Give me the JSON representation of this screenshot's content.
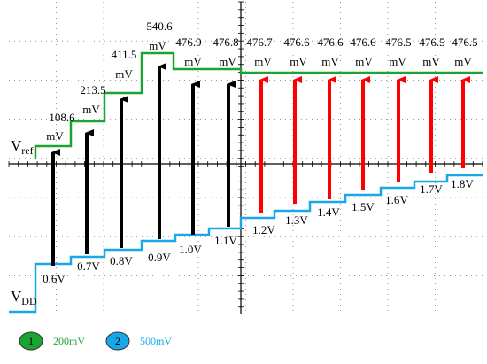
{
  "vref_levels": [
    {
      "value": "108.6",
      "unit": "mV"
    },
    {
      "value": "213.5",
      "unit": "mV"
    },
    {
      "value": "411.5",
      "unit": "mV"
    },
    {
      "value": "540.6",
      "unit": "mV"
    },
    {
      "value": "476.9",
      "unit": "mV"
    },
    {
      "value": "476.8",
      "unit": "mV"
    },
    {
      "value": "476.7",
      "unit": "mV"
    },
    {
      "value": "476.6",
      "unit": "mV"
    },
    {
      "value": "476.6",
      "unit": "mV"
    },
    {
      "value": "476.6",
      "unit": "mV"
    },
    {
      "value": "476.5",
      "unit": "mV"
    },
    {
      "value": "476.5",
      "unit": "mV"
    },
    {
      "value": "476.5",
      "unit": "mV"
    }
  ],
  "vdd_levels": [
    "0.6V",
    "0.7V",
    "0.8V",
    "0.9V",
    "1.0V",
    "1.1V",
    "1.2V",
    "1.3V",
    "1.4V",
    "1.5V",
    "1.6V",
    "1.7V",
    "1.8V"
  ],
  "trace_labels": {
    "vref": {
      "main": "V",
      "sub": "ref"
    },
    "vdd": {
      "main": "V",
      "sub": "DD"
    }
  },
  "legend": [
    {
      "number": "1",
      "scale": "200mV"
    },
    {
      "number": "2",
      "scale": "500mV"
    }
  ]
}
